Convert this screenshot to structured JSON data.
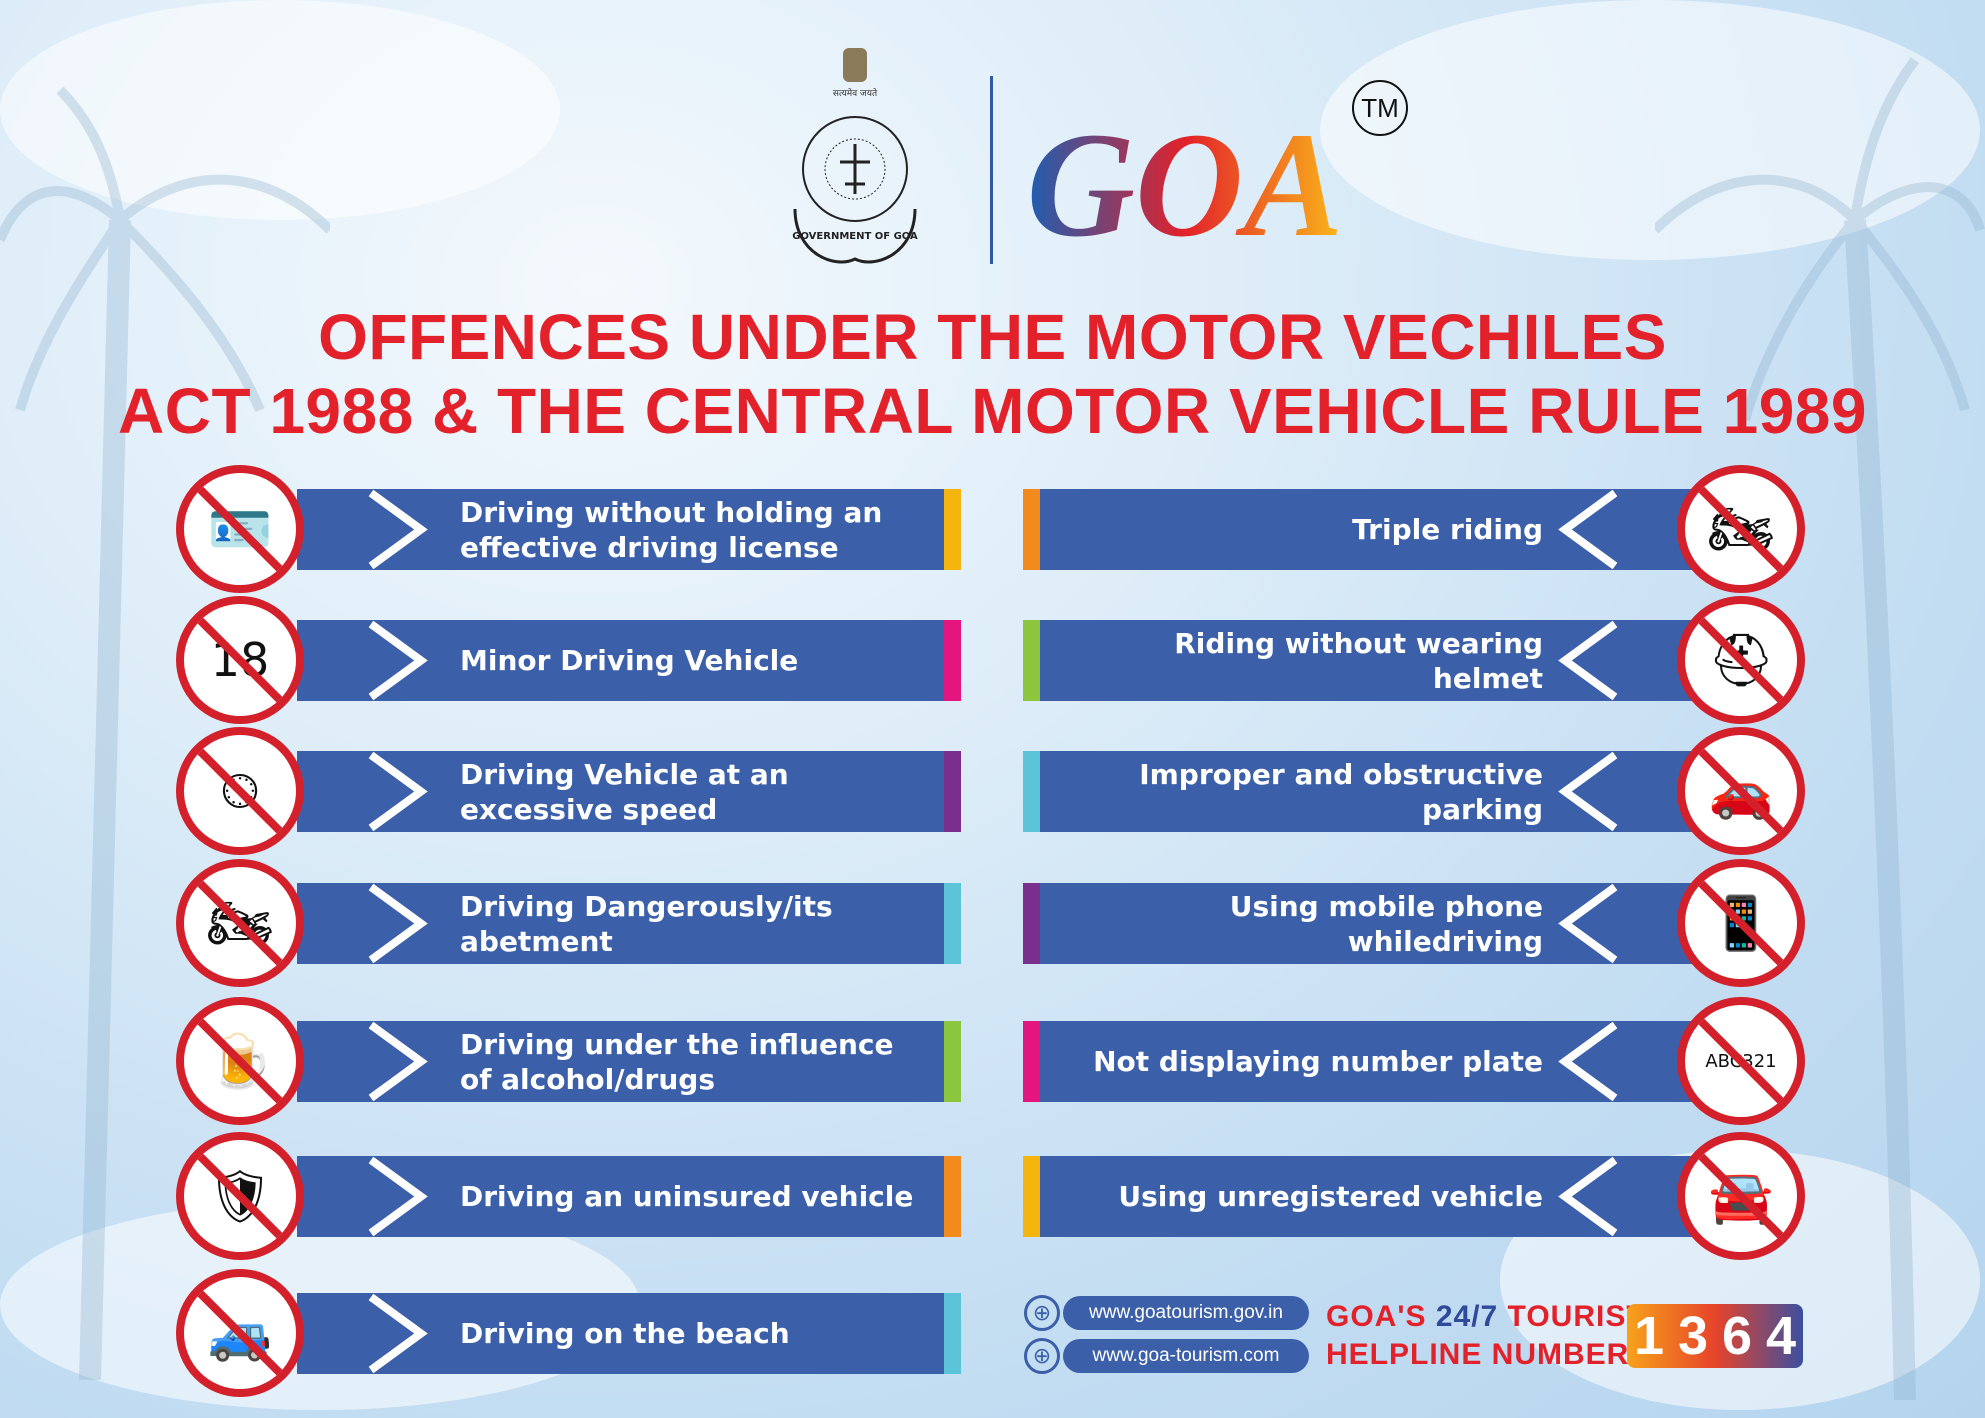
{
  "header": {
    "emblem_motto": "सत्यमेव जयते",
    "emblem_text": "GOVERNMENT OF GOA",
    "logo_text": "GOA",
    "trademark": "TM"
  },
  "title": {
    "line1": "OFFENCES UNDER THE MOTOR VECHILES",
    "line2": "ACT 1988 & THE CENTRAL MOTOR VEHICLE RULE 1989"
  },
  "colors": {
    "banner": "#3b5fa9",
    "title": "#e3212a",
    "prohibit": "#d3202a"
  },
  "left_offences": [
    {
      "label": "Driving without holding an effective driving license",
      "icon": "license-card-icon",
      "glyph": "🪪",
      "strip": "#f6b40f"
    },
    {
      "label": "Minor Driving Vehicle",
      "icon": "age-18-icon",
      "glyph": "18",
      "strip": "#e4157f"
    },
    {
      "label": "Driving Vehicle at an excessive speed",
      "icon": "speedometer-icon",
      "glyph": "⏲",
      "strip": "#7a2f8f"
    },
    {
      "label": "Driving Dangerously/its abetment",
      "icon": "collision-icon",
      "glyph": "🏍",
      "strip": "#5bc4d8"
    },
    {
      "label": "Driving under the influence of alcohol/drugs",
      "icon": "beer-mug-icon",
      "glyph": "🍺",
      "strip": "#8cc63f"
    },
    {
      "label": "Driving an uninsured vehicle",
      "icon": "insurance-shield-icon",
      "glyph": "🛡",
      "strip": "#f28a1e"
    },
    {
      "label": "Driving on the beach",
      "icon": "car-on-beach-icon",
      "glyph": "🚙",
      "strip": "#5bc4d8"
    }
  ],
  "right_offences": [
    {
      "label": "Triple riding",
      "icon": "triple-riding-icon",
      "glyph": "🏍",
      "strip": "#f28a1e"
    },
    {
      "label": "Riding without wearing helmet",
      "icon": "helmet-icon",
      "glyph": "⛑",
      "strip": "#8cc63f"
    },
    {
      "label": "Improper and obstructive parking",
      "icon": "no-parking-icon",
      "glyph": "🚗",
      "strip": "#5bc4d8"
    },
    {
      "label": "Using mobile phone whiledriving",
      "icon": "mobile-phone-icon",
      "glyph": "📱",
      "strip": "#7a2f8f"
    },
    {
      "label": "Not displaying number plate",
      "icon": "number-plate-icon",
      "glyph": "ABC321",
      "strip": "#e4157f"
    },
    {
      "label": "Using unregistered vehicle",
      "icon": "unregistered-car-icon",
      "glyph": "🚘",
      "strip": "#f6b40f"
    }
  ],
  "footer": {
    "websites": [
      "www.goatourism.gov.in",
      "www.goa-tourism.com"
    ],
    "helpline_line1_a": "GOA'S ",
    "helpline_line1_b": "24/7",
    "helpline_line1_c": " TOURIST",
    "helpline_line2": "HELPLINE NUMBER",
    "helpline_digits": [
      "1",
      "3",
      "6",
      "4"
    ]
  }
}
